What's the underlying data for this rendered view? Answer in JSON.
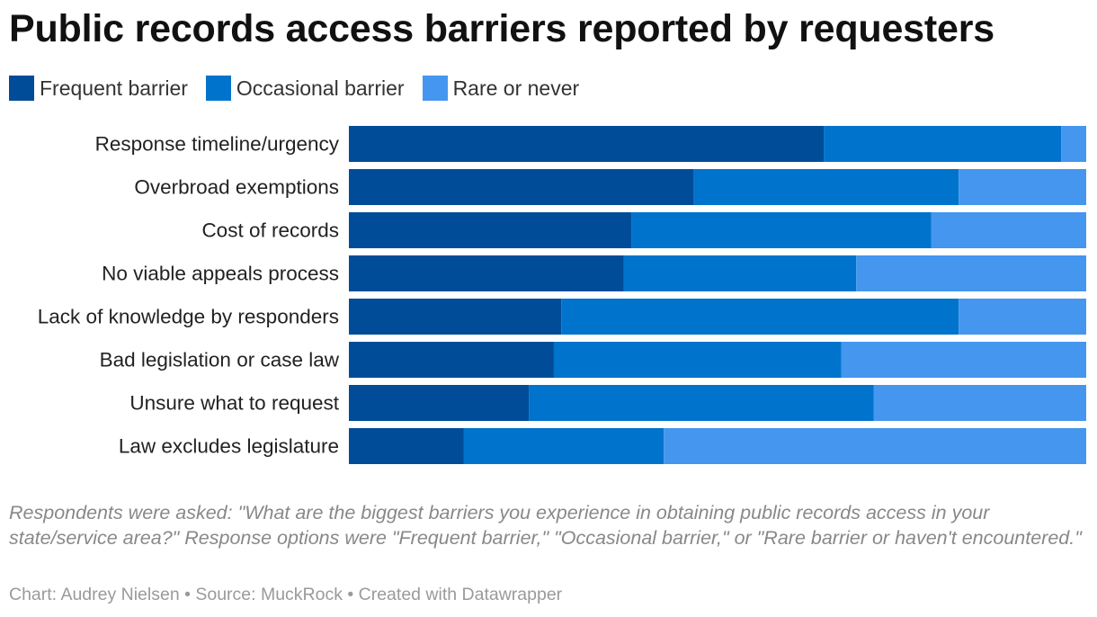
{
  "title": "Public records access barriers reported by requesters",
  "legend": [
    {
      "label": "Frequent barrier",
      "color": "#004c99"
    },
    {
      "label": "Occasional barrier",
      "color": "#0073cc"
    },
    {
      "label": "Rare or never",
      "color": "#4496ef"
    }
  ],
  "notes": "Respondents were asked: \"What are the biggest barriers you experience in obtaining public records access in your state/service area?\" Response options were \"Frequent barrier,\" \"Occasional barrier,\" or \"Rare barrier or haven't encountered.\"",
  "byline": "Chart: Audrey Nielsen • Source: MuckRock • Created with Datawrapper",
  "chart_data": {
    "type": "bar",
    "orientation": "horizontal",
    "stacked": true,
    "unit": "percent",
    "xlim": [
      0,
      100
    ],
    "grid": false,
    "legend_position": "top-left",
    "categories": [
      "Response timeline/urgency",
      "Overbroad exemptions",
      "Cost of records",
      "No viable appeals process",
      "Lack of knowledge by responders",
      "Bad legislation or case law",
      "Unsure what to request",
      "Law excludes legislature"
    ],
    "series": [
      {
        "name": "Frequent barrier",
        "color": "#004c99",
        "values": [
          64.4,
          46.8,
          38.3,
          37.3,
          28.8,
          27.8,
          24.4,
          15.6
        ]
      },
      {
        "name": "Occasional barrier",
        "color": "#0073cc",
        "values": [
          32.2,
          35.9,
          40.7,
          31.5,
          53.9,
          39.0,
          46.8,
          27.1
        ]
      },
      {
        "name": "Rare or never",
        "color": "#4496ef",
        "values": [
          3.4,
          17.3,
          21.0,
          31.2,
          17.3,
          33.2,
          28.8,
          57.3
        ]
      }
    ]
  }
}
